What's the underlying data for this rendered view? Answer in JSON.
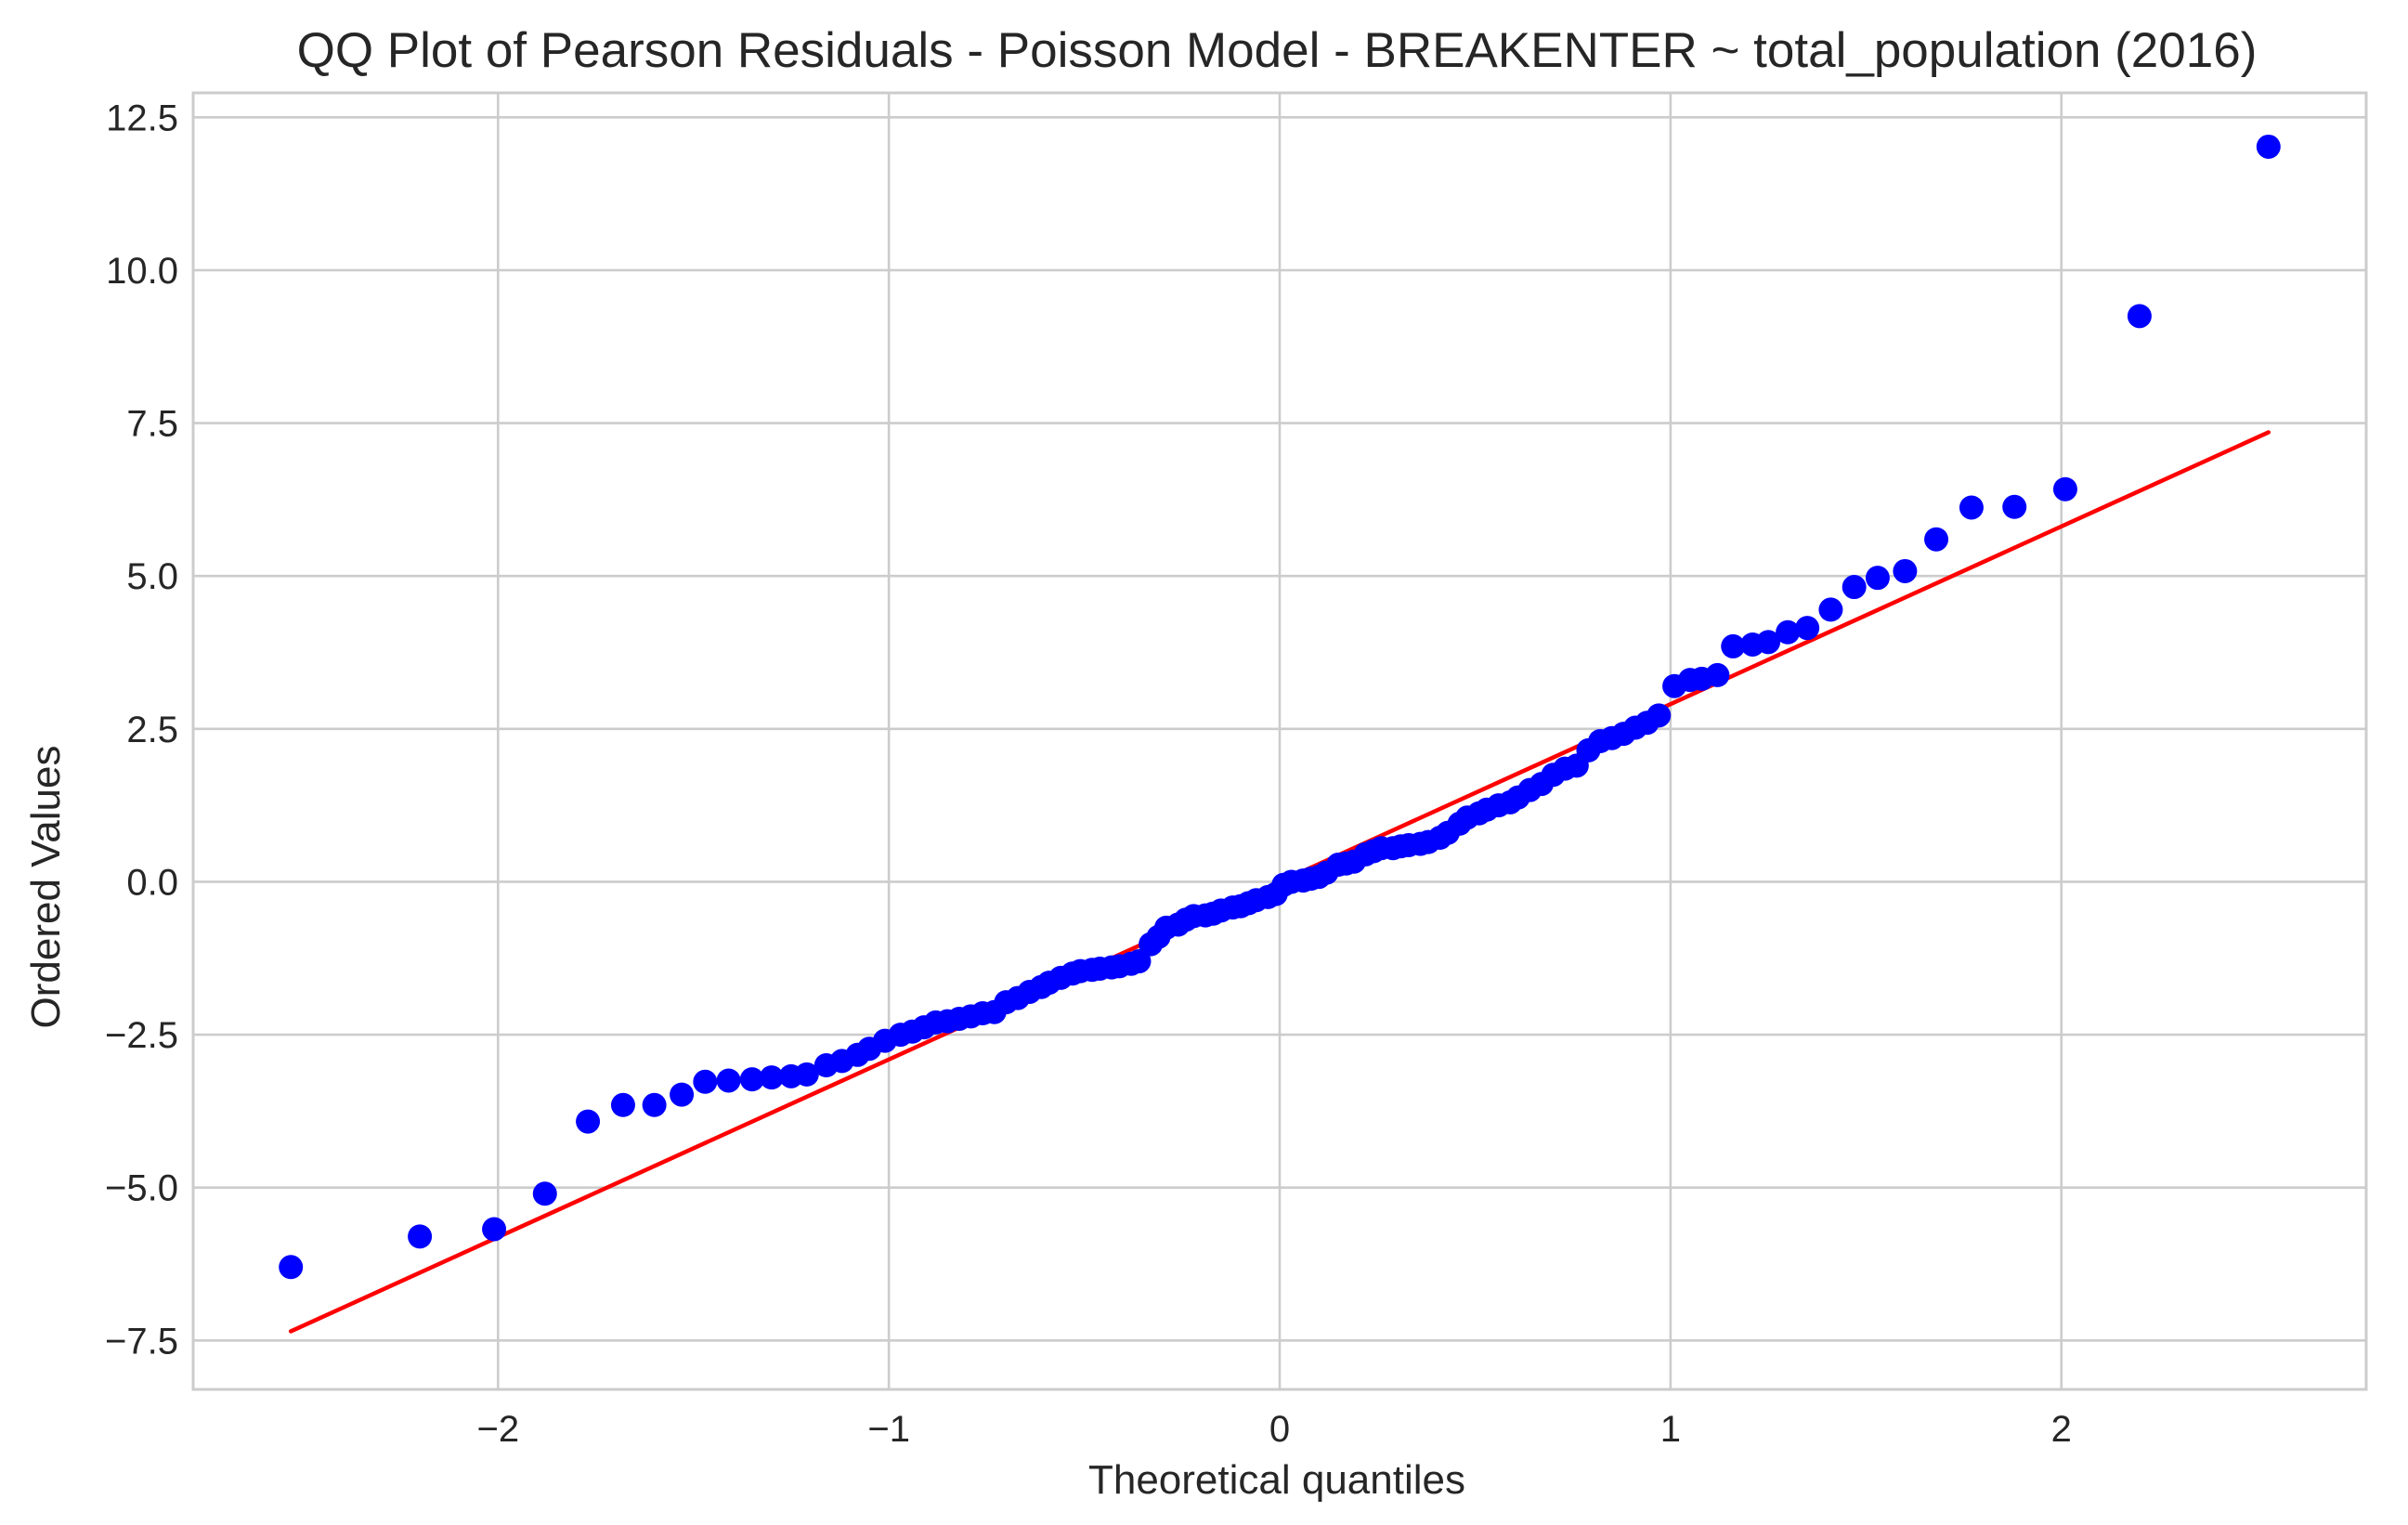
{
  "chart_data": {
    "type": "scatter",
    "title": "QQ Plot of Pearson Residuals - Poisson Model - BREAKENTER ~ total_population (2016)",
    "xlabel": "Theoretical quantiles",
    "ylabel": "Ordered Values",
    "xlim": [
      -2.78,
      2.78
    ],
    "ylim": [
      -8.3,
      12.9
    ],
    "xticks": [
      -2,
      -1,
      0,
      1,
      2
    ],
    "xtick_labels": [
      "−2",
      "−1",
      "0",
      "1",
      "2"
    ],
    "yticks": [
      -7.5,
      -5.0,
      -2.5,
      0.0,
      2.5,
      5.0,
      7.5,
      10.0,
      12.5
    ],
    "ytick_labels": [
      "−7.5",
      "−5.0",
      "−2.5",
      "0.0",
      "2.5",
      "5.0",
      "7.5",
      "10.0",
      "12.5"
    ],
    "grid": true,
    "colors": {
      "points": "#0000ff",
      "fit_line": "#ff0000",
      "grid": "#cccccc",
      "text": "#262626"
    },
    "fit_line": {
      "x": [
        -2.53,
        2.53
      ],
      "y": [
        -7.35,
        7.35
      ]
    },
    "series": [
      {
        "x": [
          -2.53,
          -2.2,
          -2.01,
          -1.88,
          -1.77,
          -1.68,
          -1.6,
          -1.53,
          -1.47,
          -1.41,
          -1.35,
          -1.3,
          -1.25,
          -1.21,
          -1.16,
          -1.12,
          -1.08,
          -1.05,
          -1.01,
          -0.97,
          -0.94,
          -0.91,
          -0.88,
          -0.85,
          -0.82,
          -0.79,
          -0.76,
          -0.73,
          -0.7,
          -0.67,
          -0.64,
          -0.61,
          -0.59,
          -0.56,
          -0.53,
          -0.51,
          -0.48,
          -0.46,
          -0.43,
          -0.41,
          -0.38,
          -0.36,
          -0.33,
          -0.31,
          -0.29,
          -0.26,
          -0.24,
          -0.22,
          -0.19,
          -0.17,
          -0.15,
          -0.12,
          -0.1,
          -0.08,
          -0.06,
          -0.03,
          -0.01,
          0.01,
          0.03,
          0.06,
          0.08,
          0.1,
          0.12,
          0.15,
          0.17,
          0.19,
          0.22,
          0.24,
          0.26,
          0.29,
          0.31,
          0.33,
          0.36,
          0.38,
          0.41,
          0.43,
          0.46,
          0.48,
          0.51,
          0.53,
          0.56,
          0.59,
          0.61,
          0.64,
          0.67,
          0.7,
          0.73,
          0.76,
          0.79,
          0.82,
          0.85,
          0.88,
          0.91,
          0.94,
          0.97,
          1.01,
          1.05,
          1.08,
          1.12,
          1.16,
          1.21,
          1.25,
          1.3,
          1.35,
          1.41,
          1.47,
          1.53,
          1.6,
          1.68,
          1.77,
          1.88,
          2.01,
          2.2,
          2.53
        ],
        "y": [
          -6.3,
          -5.8,
          -5.68,
          -5.1,
          -3.92,
          -3.65,
          -3.65,
          -3.48,
          -3.27,
          -3.25,
          -3.23,
          -3.2,
          -3.18,
          -3.15,
          -3.0,
          -2.93,
          -2.83,
          -2.73,
          -2.6,
          -2.5,
          -2.45,
          -2.38,
          -2.3,
          -2.28,
          -2.24,
          -2.2,
          -2.15,
          -2.13,
          -1.97,
          -1.9,
          -1.8,
          -1.72,
          -1.65,
          -1.57,
          -1.5,
          -1.46,
          -1.44,
          -1.42,
          -1.4,
          -1.38,
          -1.34,
          -1.3,
          -1.02,
          -0.9,
          -0.75,
          -0.7,
          -0.62,
          -0.56,
          -0.55,
          -0.52,
          -0.47,
          -0.42,
          -0.4,
          -0.35,
          -0.3,
          -0.25,
          -0.2,
          -0.05,
          0.0,
          0.02,
          0.05,
          0.08,
          0.15,
          0.28,
          0.3,
          0.33,
          0.45,
          0.5,
          0.55,
          0.55,
          0.58,
          0.6,
          0.62,
          0.65,
          0.72,
          0.8,
          0.95,
          1.05,
          1.12,
          1.18,
          1.25,
          1.3,
          1.38,
          1.5,
          1.6,
          1.75,
          1.85,
          1.9,
          2.15,
          2.3,
          2.35,
          2.42,
          2.52,
          2.6,
          2.72,
          3.2,
          3.3,
          3.32,
          3.38,
          3.85,
          3.88,
          3.92,
          4.08,
          4.15,
          4.45,
          4.82,
          4.97,
          5.08,
          5.6,
          6.12,
          6.13,
          6.42,
          9.25,
          12.02
        ]
      }
    ]
  }
}
